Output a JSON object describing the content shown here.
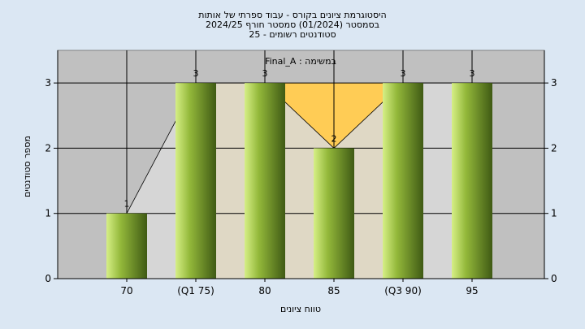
{
  "chart_data": {
    "type": "bar",
    "title_lines": [
      "היסטוגרמת ציונים בקורס - עבוד ספרתי של אותות",
      "בסמסטר  (01/2024)  סמסטר חורף  2024/25",
      "סטודנטים רשומים - 25"
    ],
    "series_label": "במשימה : Final_A",
    "categories": [
      "70",
      "(Q1 75)",
      "80",
      "85",
      "(Q3 90)",
      "95"
    ],
    "values": [
      1,
      3,
      3,
      2,
      3,
      3
    ],
    "data_labels": [
      "1",
      "3",
      "3",
      "2",
      "3",
      "3"
    ],
    "xlabel": "טווח ציונים",
    "ylabel": "מספר סטודנטים",
    "ylim": [
      0,
      3.5
    ],
    "yticks": [
      "0",
      "1",
      "2",
      "3"
    ],
    "iqr_band": {
      "from": "(Q1 75)",
      "to": "(Q3 90)"
    },
    "grid": true,
    "colors": {
      "background": "#dbe7f3",
      "plot_area": "#c0c0c0",
      "iqr_band": "#ffcc55",
      "bar_light": "#d6ef86",
      "bar_mid": "#93b83a",
      "bar_dark": "#3f5a14",
      "grid": "#000000",
      "trend_fill": "#d9d9d9"
    }
  }
}
